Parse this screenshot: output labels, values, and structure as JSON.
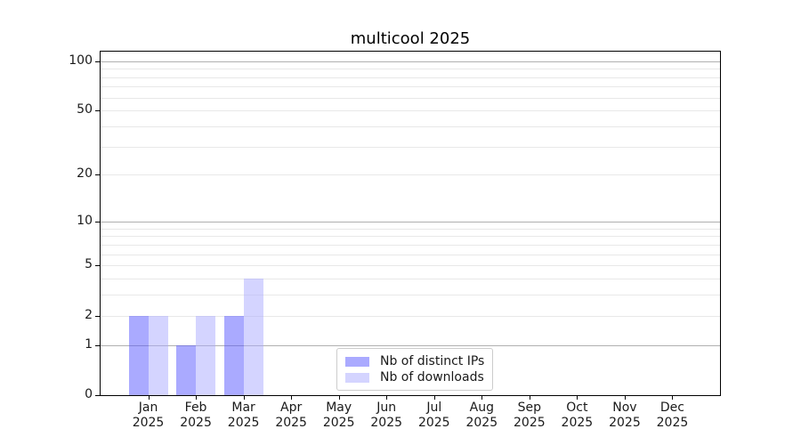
{
  "chart_data": {
    "type": "bar",
    "title": "multicool 2025",
    "categories": [
      "Jan",
      "Feb",
      "Mar",
      "Apr",
      "May",
      "Jun",
      "Jul",
      "Aug",
      "Sep",
      "Oct",
      "Nov",
      "Dec"
    ],
    "category_sublabel": "2025",
    "series": [
      {
        "name": "Nb of distinct IPs",
        "color": "rgba(85,85,255,0.5)",
        "values": [
          2,
          1,
          2,
          0,
          0,
          0,
          0,
          0,
          0,
          0,
          0,
          0
        ]
      },
      {
        "name": "Nb of downloads",
        "color": "rgba(170,170,255,0.5)",
        "values": [
          2,
          2,
          4,
          0,
          0,
          0,
          0,
          0,
          0,
          0,
          0,
          0
        ]
      }
    ],
    "yscale": "log1p",
    "ylim": [
      0,
      114
    ],
    "ytick_labels": [
      0,
      1,
      2,
      5,
      10,
      20,
      50,
      100
    ],
    "y_major_gridlines": [
      1,
      10,
      100
    ],
    "y_minor_gridlines": [
      2,
      3,
      4,
      5,
      6,
      7,
      8,
      9,
      20,
      30,
      40,
      50,
      60,
      70,
      80,
      90
    ],
    "grid": true,
    "legend_position": "lower-center-inside",
    "colors": {
      "major_grid": "#b0b0b0",
      "minor_grid": "#e8e8e8",
      "axis": "#000000",
      "text": "#1a1a1a",
      "legend_border": "#cccccc",
      "legend_bg": "#ffffff"
    }
  }
}
